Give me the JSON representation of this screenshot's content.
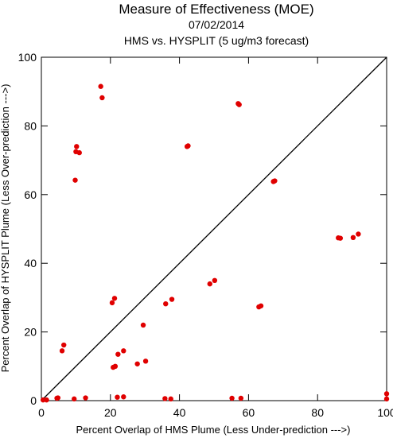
{
  "chart_data": {
    "type": "scatter",
    "title": "Measure of Effectiveness (MOE)",
    "subtitle": "07/02/2014",
    "subtitle2": "HMS vs. HYSPLIT  (5 ug/m3 forecast)",
    "xlabel": "Percent Overlap of HMS Plume (Less Under-prediction --->)",
    "ylabel": "Percent Overlap of HYSPLIT Plume (Less Over-prediction --->)",
    "xlim": [
      0,
      100
    ],
    "ylim": [
      0,
      100
    ],
    "xticks": [
      "0",
      "20",
      "40",
      "60",
      "80",
      "100"
    ],
    "yticks": [
      "0",
      "20",
      "40",
      "60",
      "80",
      "100"
    ],
    "reference_line": "diagonal y = x",
    "grid": false,
    "point_color": "#e00000",
    "line_color": "#000000",
    "points": [
      {
        "x": 0.5,
        "y": 0.2
      },
      {
        "x": 1.5,
        "y": 0.2
      },
      {
        "x": 4.5,
        "y": 0.7
      },
      {
        "x": 4.8,
        "y": 0.8
      },
      {
        "x": 6.0,
        "y": 14.5
      },
      {
        "x": 6.5,
        "y": 16.2
      },
      {
        "x": 9.5,
        "y": 0.5
      },
      {
        "x": 9.8,
        "y": 64.2
      },
      {
        "x": 10.0,
        "y": 72.5
      },
      {
        "x": 10.2,
        "y": 74.0
      },
      {
        "x": 11.0,
        "y": 72.2
      },
      {
        "x": 12.8,
        "y": 0.8
      },
      {
        "x": 17.2,
        "y": 91.5
      },
      {
        "x": 17.6,
        "y": 88.2
      },
      {
        "x": 20.5,
        "y": 28.5
      },
      {
        "x": 21.2,
        "y": 29.8
      },
      {
        "x": 20.8,
        "y": 9.7
      },
      {
        "x": 21.4,
        "y": 10.0
      },
      {
        "x": 22.0,
        "y": 1.0
      },
      {
        "x": 22.2,
        "y": 13.5
      },
      {
        "x": 23.8,
        "y": 14.5
      },
      {
        "x": 23.8,
        "y": 1.1
      },
      {
        "x": 27.8,
        "y": 10.7
      },
      {
        "x": 29.5,
        "y": 22.0
      },
      {
        "x": 30.2,
        "y": 11.5
      },
      {
        "x": 35.8,
        "y": 0.6
      },
      {
        "x": 36.0,
        "y": 28.2
      },
      {
        "x": 37.5,
        "y": 0.5
      },
      {
        "x": 37.8,
        "y": 29.5
      },
      {
        "x": 42.2,
        "y": 74.0
      },
      {
        "x": 42.5,
        "y": 74.2
      },
      {
        "x": 48.8,
        "y": 34.0
      },
      {
        "x": 50.2,
        "y": 35.0
      },
      {
        "x": 55.2,
        "y": 0.7
      },
      {
        "x": 57.0,
        "y": 86.5
      },
      {
        "x": 57.3,
        "y": 86.2
      },
      {
        "x": 57.8,
        "y": 0.7
      },
      {
        "x": 63.0,
        "y": 27.3
      },
      {
        "x": 63.6,
        "y": 27.6
      },
      {
        "x": 67.2,
        "y": 63.8
      },
      {
        "x": 67.6,
        "y": 64.0
      },
      {
        "x": 86.0,
        "y": 47.4
      },
      {
        "x": 86.6,
        "y": 47.3
      },
      {
        "x": 90.3,
        "y": 47.5
      },
      {
        "x": 91.8,
        "y": 48.5
      },
      {
        "x": 100.0,
        "y": 2.0
      },
      {
        "x": 100.0,
        "y": 0.5
      }
    ]
  }
}
